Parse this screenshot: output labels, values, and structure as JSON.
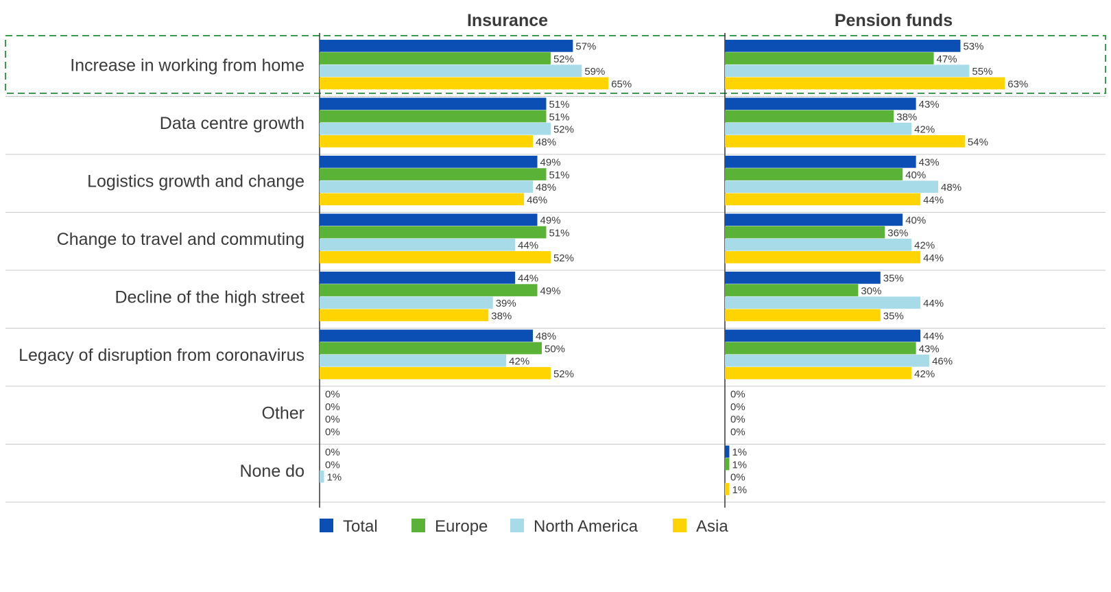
{
  "chart_data": {
    "type": "bar",
    "orientation": "horizontal",
    "panels": [
      {
        "title": "Insurance",
        "series": [
          {
            "name": "Total",
            "values": [
              57,
              51,
              49,
              49,
              44,
              48,
              0,
              0
            ]
          },
          {
            "name": "Europe",
            "values": [
              52,
              51,
              51,
              51,
              49,
              50,
              0,
              0
            ]
          },
          {
            "name": "North America",
            "values": [
              59,
              52,
              48,
              44,
              39,
              42,
              0,
              1
            ]
          },
          {
            "name": "Asia",
            "values": [
              65,
              48,
              46,
              52,
              38,
              52,
              0,
              null
            ]
          }
        ]
      },
      {
        "title": "Pension funds",
        "series": [
          {
            "name": "Total",
            "values": [
              53,
              43,
              43,
              40,
              35,
              44,
              0,
              1
            ]
          },
          {
            "name": "Europe",
            "values": [
              47,
              38,
              40,
              36,
              30,
              43,
              0,
              1
            ]
          },
          {
            "name": "North America",
            "values": [
              55,
              42,
              48,
              42,
              44,
              46,
              0,
              0
            ]
          },
          {
            "name": "Asia",
            "values": [
              63,
              54,
              44,
              44,
              35,
              42,
              0,
              1
            ]
          }
        ]
      }
    ],
    "categories": [
      "Increase in working from home",
      "Data centre growth",
      "Logistics growth and change",
      "Change to travel and commuting",
      "Decline of the high street",
      "Legacy of disruption from coronavirus",
      "Other",
      "None do"
    ],
    "value_suffix": "%",
    "xlim": [
      0,
      100
    ],
    "highlighted_category": "Increase in working from home",
    "legend_position": "bottom",
    "colors": {
      "Total": "#0b4fb5",
      "Europe": "#5ab236",
      "North America": "#a7dbe8",
      "Asia": "#ffd400",
      "highlight_border": "#3a9a4f",
      "divider": "#c8c8c8",
      "axis": "#333333"
    }
  }
}
